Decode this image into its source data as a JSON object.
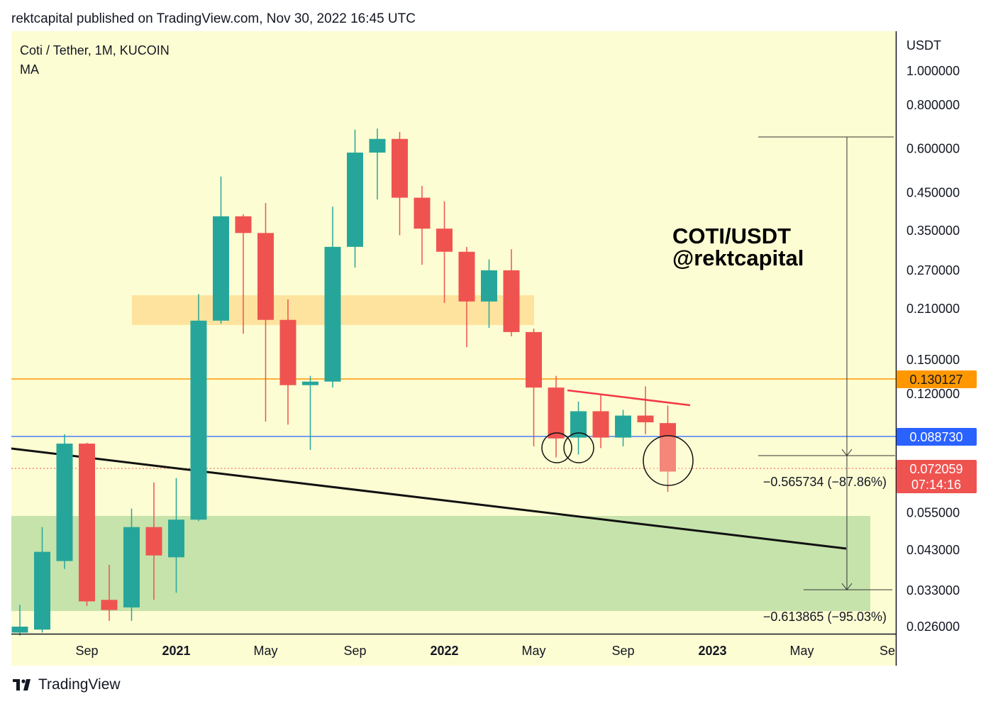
{
  "header": {
    "text": "rektcapital published on TradingView.com, Nov 30, 2022 16:45 UTC"
  },
  "legend": {
    "symbol": "Coti / Tether, 1M, KUCOIN",
    "indicator": "MA"
  },
  "overlay": {
    "line1": "COTI/USDT",
    "line2": "@rektcapital"
  },
  "footer": {
    "brand": "TradingView"
  },
  "colors": {
    "up": "#26a69a",
    "down": "#ef5350",
    "background": "#fdfdd3",
    "orange_line": "#ff9800",
    "blue_line": "#2962ff",
    "supply_zone": "#fde39e",
    "demand_zone": "#c5e3ab"
  },
  "chart_data": {
    "type": "candlestick",
    "symbol": "Coti / Tether",
    "interval": "1M",
    "exchange": "KUCOIN",
    "y_axis": {
      "label": "USDT",
      "scale": "log",
      "ticks": [
        "1.000000",
        "0.800000",
        "0.600000",
        "0.450000",
        "0.350000",
        "0.270000",
        "0.210000",
        "0.150000",
        "0.120000",
        "0.055000",
        "0.043000",
        "0.033000",
        "0.026000"
      ]
    },
    "x_axis": {
      "ticks": [
        "Sep",
        "2021",
        "May",
        "Sep",
        "2022",
        "May",
        "Sep",
        "2023",
        "May",
        "Se"
      ]
    },
    "price_labels": [
      {
        "value": "0.130127",
        "color": "#ff9800"
      },
      {
        "value": "0.088730",
        "color": "#2962ff"
      },
      {
        "value": "0.072059",
        "countdown": "07:14:16",
        "color": "#ef5350"
      }
    ],
    "measurements": [
      {
        "text": "−0.565734 (−87.86%)"
      },
      {
        "text": "−0.613865 (−95.03%)"
      }
    ],
    "candles": [
      {
        "month": "2020-06",
        "open": 0.025,
        "high": 0.03,
        "low": 0.0245,
        "close": 0.026
      },
      {
        "month": "2020-07",
        "open": 0.0255,
        "high": 0.05,
        "low": 0.025,
        "close": 0.0425
      },
      {
        "month": "2020-08",
        "open": 0.04,
        "high": 0.092,
        "low": 0.038,
        "close": 0.0865
      },
      {
        "month": "2020-09",
        "open": 0.0865,
        "high": 0.087,
        "low": 0.0298,
        "close": 0.0307
      },
      {
        "month": "2020-10",
        "open": 0.031,
        "high": 0.039,
        "low": 0.027,
        "close": 0.029
      },
      {
        "month": "2020-11",
        "open": 0.0295,
        "high": 0.0565,
        "low": 0.027,
        "close": 0.05
      },
      {
        "month": "2020-12",
        "open": 0.05,
        "high": 0.067,
        "low": 0.031,
        "close": 0.0415
      },
      {
        "month": "2021-01",
        "open": 0.041,
        "high": 0.069,
        "low": 0.0325,
        "close": 0.0525
      },
      {
        "month": "2021-02",
        "open": 0.0525,
        "high": 0.231,
        "low": 0.052,
        "close": 0.194
      },
      {
        "month": "2021-03",
        "open": 0.194,
        "high": 0.5,
        "low": 0.19,
        "close": 0.385
      },
      {
        "month": "2021-04",
        "open": 0.385,
        "high": 0.39,
        "low": 0.178,
        "close": 0.345
      },
      {
        "month": "2021-05",
        "open": 0.345,
        "high": 0.42,
        "low": 0.1,
        "close": 0.195
      },
      {
        "month": "2021-06",
        "open": 0.195,
        "high": 0.223,
        "low": 0.098,
        "close": 0.127
      },
      {
        "month": "2021-07",
        "open": 0.127,
        "high": 0.135,
        "low": 0.083,
        "close": 0.13
      },
      {
        "month": "2021-08",
        "open": 0.13,
        "high": 0.41,
        "low": 0.125,
        "close": 0.315
      },
      {
        "month": "2021-09",
        "open": 0.315,
        "high": 0.68,
        "low": 0.275,
        "close": 0.585
      },
      {
        "month": "2021-10",
        "open": 0.585,
        "high": 0.685,
        "low": 0.43,
        "close": 0.64
      },
      {
        "month": "2021-11",
        "open": 0.64,
        "high": 0.67,
        "low": 0.34,
        "close": 0.435
      },
      {
        "month": "2021-12",
        "open": 0.435,
        "high": 0.47,
        "low": 0.28,
        "close": 0.355
      },
      {
        "month": "2022-01",
        "open": 0.355,
        "high": 0.425,
        "low": 0.218,
        "close": 0.305
      },
      {
        "month": "2022-02",
        "open": 0.305,
        "high": 0.315,
        "low": 0.163,
        "close": 0.22
      },
      {
        "month": "2022-03",
        "open": 0.22,
        "high": 0.29,
        "low": 0.185,
        "close": 0.27
      },
      {
        "month": "2022-04",
        "open": 0.27,
        "high": 0.31,
        "low": 0.175,
        "close": 0.18
      },
      {
        "month": "2022-05",
        "open": 0.18,
        "high": 0.184,
        "low": 0.085,
        "close": 0.125
      },
      {
        "month": "2022-06",
        "open": 0.125,
        "high": 0.135,
        "low": 0.079,
        "close": 0.0895
      },
      {
        "month": "2022-07",
        "open": 0.09,
        "high": 0.114,
        "low": 0.0805,
        "close": 0.107
      },
      {
        "month": "2022-08",
        "open": 0.107,
        "high": 0.119,
        "low": 0.084,
        "close": 0.09
      },
      {
        "month": "2022-09",
        "open": 0.09,
        "high": 0.108,
        "low": 0.085,
        "close": 0.104
      },
      {
        "month": "2022-10",
        "open": 0.104,
        "high": 0.126,
        "low": 0.092,
        "close": 0.0995
      },
      {
        "month": "2022-11",
        "open": 0.099,
        "high": 0.111,
        "low": 0.063,
        "close": 0.072
      }
    ]
  }
}
